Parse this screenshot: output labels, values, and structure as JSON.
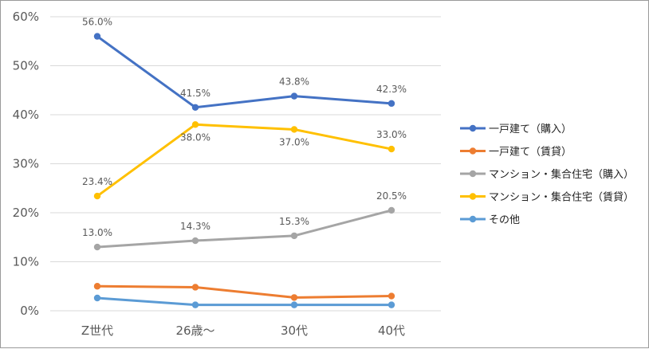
{
  "chart_data": {
    "type": "line",
    "categories": [
      "Z世代",
      "26歳～",
      "30代",
      "40代"
    ],
    "ylim": [
      0,
      60
    ],
    "yticks": [
      0,
      10,
      20,
      30,
      40,
      50,
      60
    ],
    "ytick_labels": [
      "0%",
      "10%",
      "20%",
      "30%",
      "40%",
      "50%",
      "60%"
    ],
    "grid": true,
    "legend_position": "right",
    "series": [
      {
        "name": "一戸建て（購入）",
        "color": "#4472C4",
        "values": [
          56.0,
          41.5,
          43.8,
          42.3
        ],
        "labels": [
          "56.0%",
          "41.5%",
          "43.8%",
          "42.3%"
        ],
        "label_pos": [
          "above",
          "above",
          "above",
          "above"
        ]
      },
      {
        "name": "一戸建て（賃貸）",
        "color": "#ED7D31",
        "values": [
          5.0,
          4.8,
          2.7,
          3.0
        ]
      },
      {
        "name": "マンション・集合住宅（購入）",
        "color": "#A5A5A5",
        "values": [
          13.0,
          14.3,
          15.3,
          20.5
        ],
        "labels": [
          "13.0%",
          "14.3%",
          "15.3%",
          "20.5%"
        ],
        "label_pos": [
          "above",
          "above",
          "above",
          "above"
        ]
      },
      {
        "name": "マンション・集合住宅（賃貸）",
        "color": "#FFC000",
        "values": [
          23.4,
          38.0,
          37.0,
          33.0
        ],
        "labels": [
          "23.4%",
          "38.0%",
          "37.0%",
          "33.0%"
        ],
        "label_pos": [
          "above",
          "below",
          "below",
          "above"
        ]
      },
      {
        "name": "その他",
        "color": "#5B9BD5",
        "values": [
          2.6,
          1.2,
          1.2,
          1.2
        ]
      }
    ]
  }
}
